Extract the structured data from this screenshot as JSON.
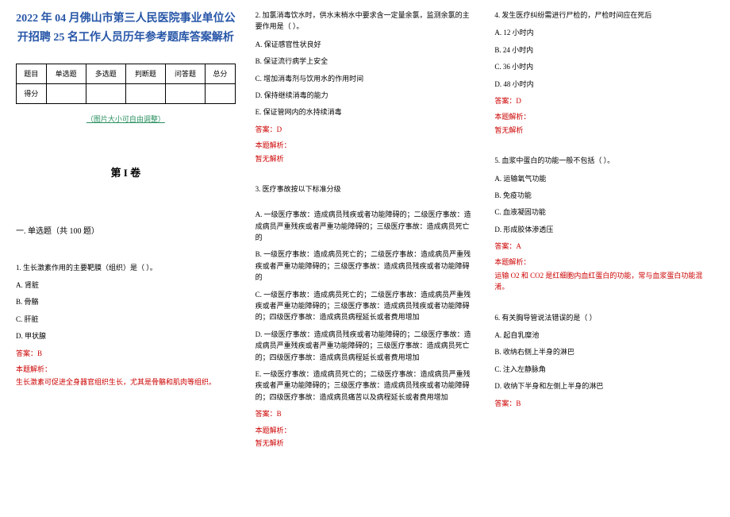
{
  "title": "2022 年 04 月佛山市第三人民医院事业单位公开招聘 25 名工作人员历年参考题库答案解析",
  "scoreTable": {
    "headers": [
      "题目",
      "单选题",
      "多选题",
      "判断题",
      "问答题",
      "总分"
    ],
    "rowLabel": "得分"
  },
  "tableCaption": "（图片大小可自由调整）",
  "juanTitle": "第 I 卷",
  "sectionTitle": "一. 单选题（共 100 题）",
  "q1": {
    "text": "1. 生长激素作用的主要靶膜（组织）是（ ）。",
    "a": "A. 肾脏",
    "b": "B. 骨骼",
    "c": "C. 肝脏",
    "d": "D. 甲状腺",
    "answer": "答案：B",
    "analysisLabel": "本题解析：",
    "analysisText": "生长激素可促进全身器官组织生长，尤其是骨骼和肌肉等组织。"
  },
  "q2": {
    "text": "2. 加氯消毒饮水时，供水末梢水中要求含一定量余氯，监测余氯的主要作用是（ ）。",
    "a": "A. 保证感官性状良好",
    "b": "B. 保证流行病学上安全",
    "c": "C. 增加消毒剂与饮用水的作用时间",
    "d": "D. 保持继续消毒的能力",
    "e": "E. 保证管网内的水持续消毒",
    "answer": "答案：D",
    "analysisLabel": "本题解析：",
    "analysisText": "暂无解析"
  },
  "q3": {
    "text": "3. 医疗事故按以下标准分级",
    "a": "A. 一级医疗事故：造成病员残疾或者功能障碍的；二级医疗事故：造成病员严重残疾或者严重功能障碍的；三级医疗事故：造成病员死亡的",
    "b": "B. 一级医疗事故：造成病员死亡的；二级医疗事故：造成病员严重残疾或者严重功能障碍的；三级医疗事故：造成病员残疾或者功能障碍的",
    "c": "C. 一级医疗事故：造成病员死亡的；二级医疗事故：造成病员严重残疾或者严重功能障碍的；三级医疗事故：造成病员残疾或者功能障碍的；四级医疗事故：造成病员病程延长或者费用增加",
    "d": "D. 一级医疗事故：造成病员残疾或者功能障碍的；二级医疗事故：造成病员严重残疾或者严重功能障碍的；三级医疗事故：造成病员死亡的；四级医疗事故：造成病员病程延长或者费用增加",
    "e": "E. 一级医疗事故：造成病员死亡的；二级医疗事故：造成病员严重残疾或者严重功能障碍的；三级医疗事故：造成病员残疾或者功能障碍的；四级医疗事故：造成病员痛苦以及病程延长或者费用增加",
    "answer": "答案：B",
    "analysisLabel": "本题解析：",
    "analysisText": "暂无解析"
  },
  "q4": {
    "text": "4. 发生医疗纠纷需进行尸检的，尸检时间应在死后",
    "a": "A. 12 小时内",
    "b": "B. 24 小时内",
    "c": "C. 36 小时内",
    "d": "D. 48 小时内",
    "answer": "答案：D",
    "analysisLabel": "本题解析：",
    "analysisText": "暂无解析"
  },
  "q5": {
    "text": "5. 血浆中蛋白的功能一般不包括（ ）。",
    "a": "A. 运输氧气功能",
    "b": "B. 免疫功能",
    "c": "C. 血液凝固功能",
    "d": "D. 形成胶体渗透压",
    "answer": "答案：A",
    "analysisLabel": "本题解析：",
    "analysisText": "运输 O2 和 CO2 是红细胞内血红蛋白的功能，常与血浆蛋白功能混淆。"
  },
  "q6": {
    "text": "6. 有关胸导管说法错误的是（ ）",
    "a": "A. 起自乳糜池",
    "b": "B. 收纳右侧上半身的淋巴",
    "c": "C. 注入左静脉角",
    "d": "D. 收纳下半身和左侧上半身的淋巴",
    "answer": "答案：B"
  }
}
